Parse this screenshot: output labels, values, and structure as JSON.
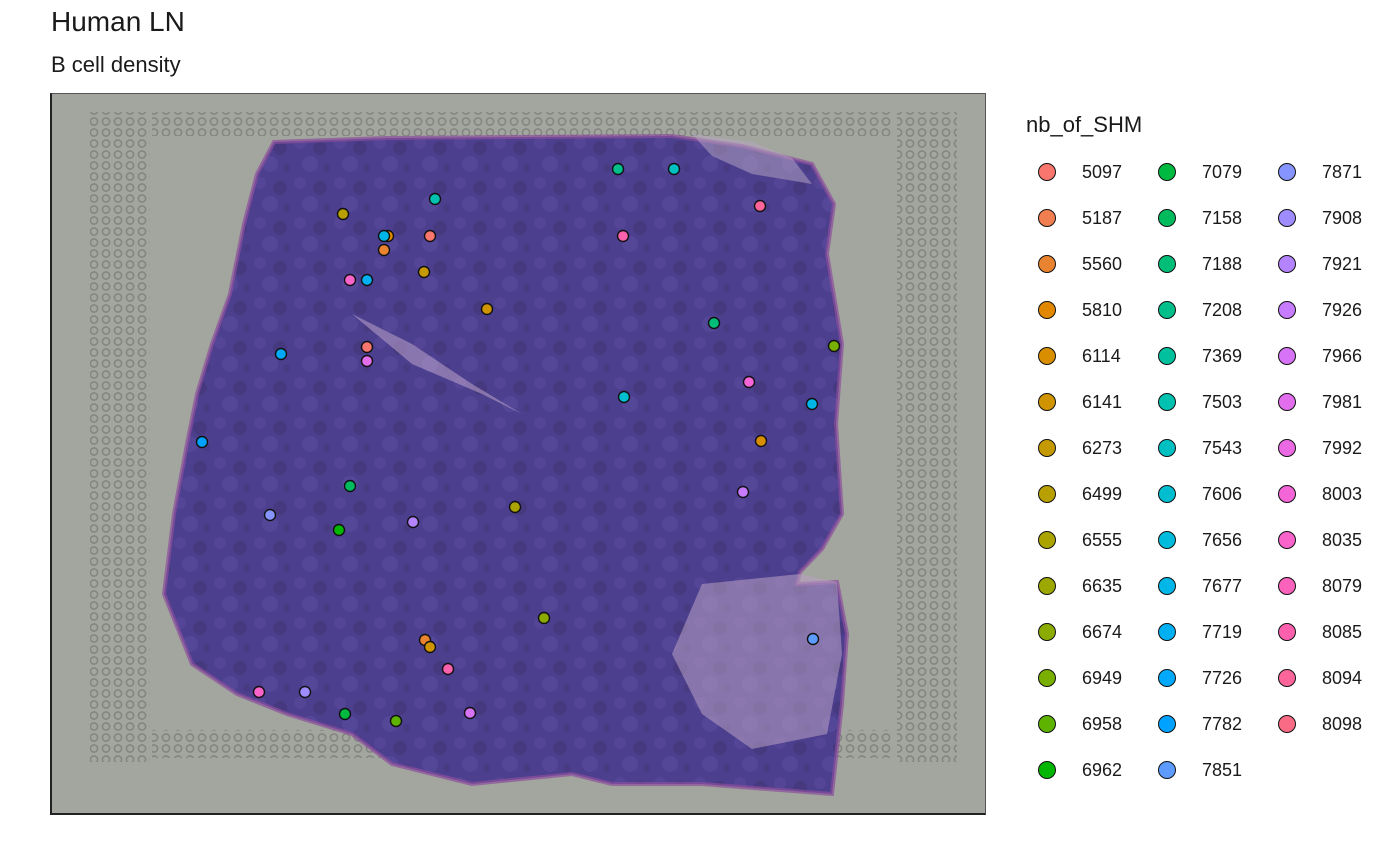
{
  "chart_data": {
    "type": "scatter",
    "title": "Human LN",
    "subtitle": "B cell density",
    "background": "H&E tissue image",
    "legend": {
      "title": "nb_of_SHM",
      "position": "right",
      "columns": 3,
      "entries": [
        {
          "label": "5097",
          "color": "#F8766D"
        },
        {
          "label": "5187",
          "color": "#F17E50"
        },
        {
          "label": "5560",
          "color": "#EA832F"
        },
        {
          "label": "5810",
          "color": "#E28800"
        },
        {
          "label": "6114",
          "color": "#D98E00"
        },
        {
          "label": "6141",
          "color": "#CF9400"
        },
        {
          "label": "6273",
          "color": "#C49A00"
        },
        {
          "label": "6499",
          "color": "#B8A000"
        },
        {
          "label": "6555",
          "color": "#ABA300"
        },
        {
          "label": "6635",
          "color": "#9CA700"
        },
        {
          "label": "6674",
          "color": "#8BAB00"
        },
        {
          "label": "6949",
          "color": "#78AF00"
        },
        {
          "label": "6958",
          "color": "#5DB300"
        },
        {
          "label": "6962",
          "color": "#00B600"
        },
        {
          "label": "7079",
          "color": "#00B940"
        },
        {
          "label": "7158",
          "color": "#00BB5E"
        },
        {
          "label": "7188",
          "color": "#00BD77"
        },
        {
          "label": "7208",
          "color": "#00BF8B"
        },
        {
          "label": "7369",
          "color": "#00C09E"
        },
        {
          "label": "7503",
          "color": "#00C1B0"
        },
        {
          "label": "7543",
          "color": "#00C0C1"
        },
        {
          "label": "7606",
          "color": "#00BECF"
        },
        {
          "label": "7656",
          "color": "#00BBDC"
        },
        {
          "label": "7677",
          "color": "#00B6E8"
        },
        {
          "label": "7719",
          "color": "#00B0F2"
        },
        {
          "label": "7726",
          "color": "#00A9FB"
        },
        {
          "label": "7782",
          "color": "#00A2FF"
        },
        {
          "label": "7851",
          "color": "#5D9BFF"
        },
        {
          "label": "7871",
          "color": "#8594FF"
        },
        {
          "label": "7908",
          "color": "#9F8CFF"
        },
        {
          "label": "7921",
          "color": "#B483FF"
        },
        {
          "label": "7926",
          "color": "#C77CFF"
        },
        {
          "label": "7966",
          "color": "#D773F6"
        },
        {
          "label": "7981",
          "color": "#E26EEE"
        },
        {
          "label": "7992",
          "color": "#EB6AE4"
        },
        {
          "label": "8003",
          "color": "#F466D7"
        },
        {
          "label": "8035",
          "color": "#F864CA"
        },
        {
          "label": "8079",
          "color": "#FB62BC"
        },
        {
          "label": "8085",
          "color": "#FD61AE"
        },
        {
          "label": "8094",
          "color": "#FC659A"
        },
        {
          "label": "8098",
          "color": "#F96A84"
        }
      ]
    }
  }
}
